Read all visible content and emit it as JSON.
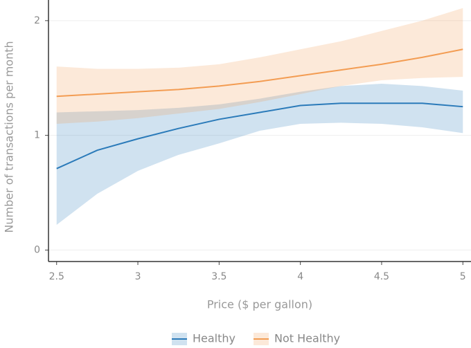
{
  "chart_data": {
    "type": "line",
    "x_label": "Price ($ per gallon)",
    "y_label": "Number of transactions per month",
    "x": [
      2.5,
      2.75,
      3,
      3.25,
      3.5,
      3.75,
      4,
      4.25,
      4.5,
      4.75,
      5
    ],
    "series": [
      {
        "name": "Healthy",
        "color": "#2a7ab9",
        "values": [
          0.71,
          0.87,
          0.97,
          1.06,
          1.14,
          1.2,
          1.26,
          1.28,
          1.28,
          1.28,
          1.25
        ],
        "lower": [
          0.22,
          0.49,
          0.69,
          0.83,
          0.93,
          1.04,
          1.1,
          1.11,
          1.1,
          1.07,
          1.02
        ],
        "upper": [
          1.2,
          1.21,
          1.22,
          1.24,
          1.27,
          1.32,
          1.38,
          1.43,
          1.45,
          1.43,
          1.39
        ]
      },
      {
        "name": "Not Healthy",
        "color": "#f39c52",
        "values": [
          1.34,
          1.36,
          1.38,
          1.4,
          1.43,
          1.47,
          1.52,
          1.57,
          1.62,
          1.68,
          1.75
        ],
        "lower": [
          1.1,
          1.12,
          1.15,
          1.19,
          1.23,
          1.29,
          1.36,
          1.43,
          1.48,
          1.5,
          1.51
        ],
        "upper": [
          1.6,
          1.58,
          1.58,
          1.59,
          1.62,
          1.68,
          1.75,
          1.82,
          1.91,
          2.0,
          2.11
        ]
      }
    ],
    "xlim": [
      2.45,
      5.05
    ],
    "ylim": [
      -0.1,
      2.18
    ],
    "xticks": [
      2.5,
      3,
      3.5,
      4,
      4.5,
      5
    ],
    "yticks": [
      0,
      1,
      2
    ],
    "grid": true,
    "legend": "bottom"
  }
}
